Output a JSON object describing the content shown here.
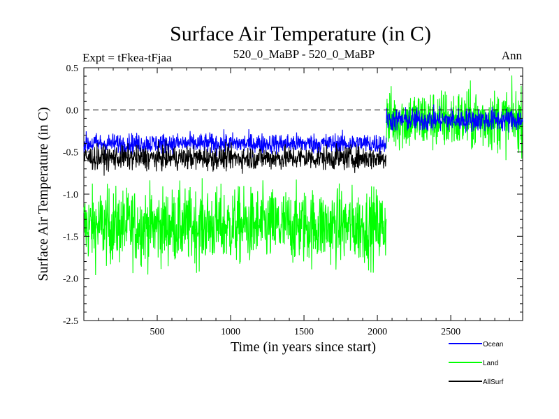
{
  "chart_data": {
    "type": "line",
    "title": "Surface Air Temperature (in C)",
    "subtitle_left": "Expt = tFkea-tFjaa",
    "subtitle_center": "520_0_MaBP - 520_0_MaBP",
    "subtitle_right": "Ann",
    "xlabel": "Time (in years since start)",
    "ylabel": "Surface Air Temperature (in C)",
    "xlim": [
      0,
      2990
    ],
    "ylim": [
      -2.5,
      0.5
    ],
    "x_ticks": [
      500,
      1000,
      1500,
      2000,
      2500
    ],
    "y_ticks": [
      0.5,
      0.0,
      -0.5,
      -1.0,
      -1.5,
      -2.0,
      -2.5
    ],
    "y_tick_labels": [
      "0.5",
      "0.0",
      "-0.5",
      "-1.0",
      "-1.5",
      "-2.0",
      "-2.5"
    ],
    "reference_line": 0.0,
    "grid": false,
    "legend_position": "bottom-right",
    "series": [
      {
        "name": "Land",
        "color": "#00ff00",
        "segments": [
          {
            "x_start": 0,
            "x_end": 2060,
            "mean": -1.38,
            "noise": 0.22
          },
          {
            "x_start": 2060,
            "x_end": 2990,
            "mean": -0.12,
            "noise": 0.18
          }
        ]
      },
      {
        "name": "Ocean",
        "color": "#0000ff",
        "segments": [
          {
            "x_start": 0,
            "x_end": 2060,
            "mean": -0.4,
            "noise": 0.06
          },
          {
            "x_start": 2060,
            "x_end": 2990,
            "mean": -0.12,
            "noise": 0.07
          }
        ]
      },
      {
        "name": "AllSurf",
        "color": "#000000",
        "segments": [
          {
            "x_start": 0,
            "x_end": 2060,
            "mean": -0.57,
            "noise": 0.07
          }
        ]
      }
    ],
    "legend": [
      {
        "name": "Ocean",
        "color": "#0000ff"
      },
      {
        "name": "Land",
        "color": "#00ff00"
      },
      {
        "name": "AllSurf",
        "color": "#000000"
      }
    ]
  }
}
